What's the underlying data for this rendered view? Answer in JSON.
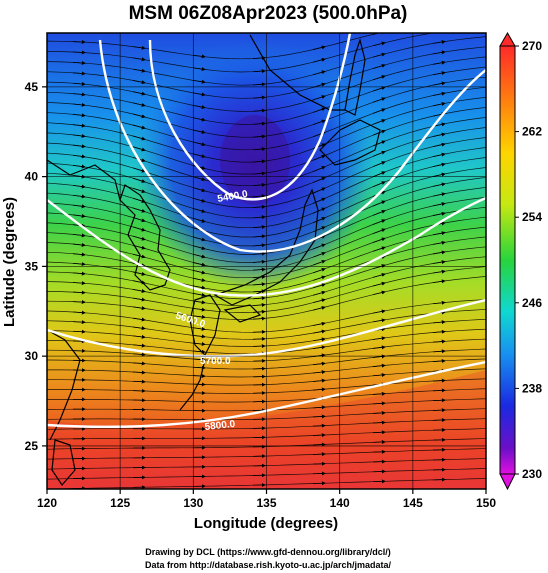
{
  "title": "MSM 06Z08Apr2023 (500.0hPa)",
  "xlabel": "Longitude (degrees)",
  "ylabel": "Latitude  (degrees)",
  "credit_line1": "Drawing by DCL (https://www.gfd-dennou.org/library/dcl/)",
  "credit_line2": "Data from http://database.rish.kyoto-u.ac.jp/arch/jmadata/",
  "x_ticks": [
    "120",
    "125",
    "130",
    "135",
    "140",
    "145",
    "150"
  ],
  "y_ticks": [
    "45",
    "40",
    "35",
    "30",
    "25"
  ],
  "colorbar_ticks": [
    "270",
    "262",
    "254",
    "246",
    "238",
    "230"
  ],
  "contour_labels": [
    {
      "text": "5400.0"
    },
    {
      "text": "5600.0"
    },
    {
      "text": "5700.0"
    },
    {
      "text": "5800.0"
    }
  ],
  "colors": {
    "cold": "#2a1fb0",
    "cool": "#1e6ee8",
    "mild": "#2fcf4a",
    "warm": "#d8d81a",
    "hot": "#e8461e"
  }
}
